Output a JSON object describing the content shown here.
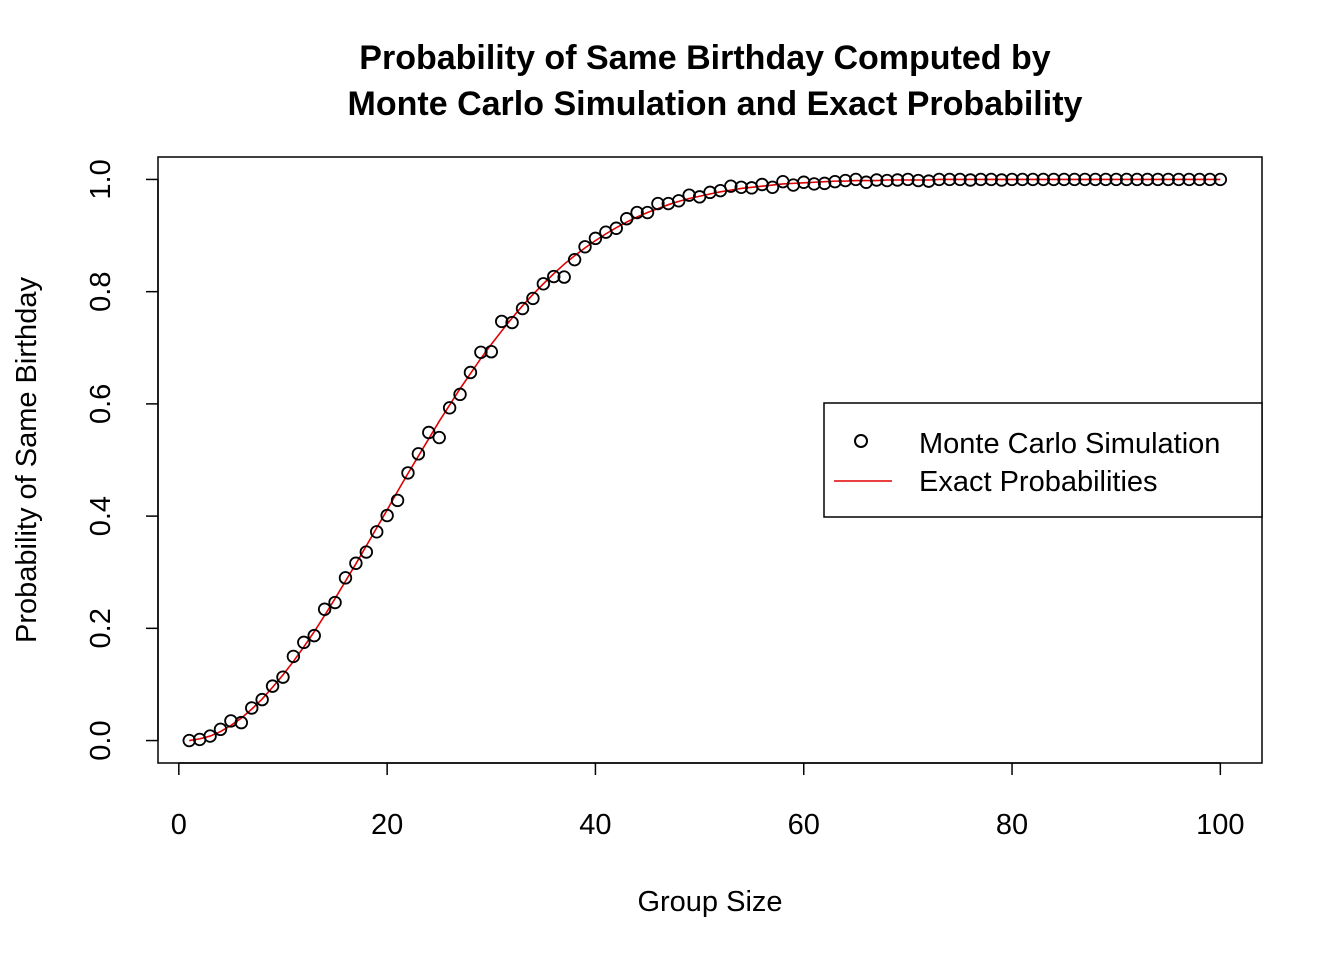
{
  "chart_data": {
    "type": "scatter",
    "title_line1": "Probability of Same Birthday Computed by",
    "title_line2": "Monte Carlo Simulation and Exact Probability",
    "xlabel": "Group Size",
    "ylabel": "Probability of Same Birthday",
    "xlim": [
      -2,
      104
    ],
    "ylim": [
      -0.04,
      1.04
    ],
    "x_ticks": [
      0,
      20,
      40,
      60,
      80,
      100
    ],
    "y_ticks": [
      0.0,
      0.2,
      0.4,
      0.6,
      0.8,
      1.0
    ],
    "x_tick_labels": [
      "0",
      "20",
      "40",
      "60",
      "80",
      "100"
    ],
    "y_tick_labels": [
      "0.0",
      "0.2",
      "0.4",
      "0.6",
      "0.8",
      "1.0"
    ],
    "grid": false,
    "legend_position": "right",
    "series": [
      {
        "name": "Monte Carlo Simulation",
        "kind": "points",
        "marker": "open-circle",
        "color": "#000000",
        "x": [
          1,
          2,
          3,
          4,
          5,
          6,
          7,
          8,
          9,
          10,
          11,
          12,
          13,
          14,
          15,
          16,
          17,
          18,
          19,
          20,
          21,
          22,
          23,
          24,
          25,
          26,
          27,
          28,
          29,
          30,
          31,
          32,
          33,
          34,
          35,
          36,
          37,
          38,
          39,
          40,
          41,
          42,
          43,
          44,
          45,
          46,
          47,
          48,
          49,
          50,
          51,
          52,
          53,
          54,
          55,
          56,
          57,
          58,
          59,
          60,
          61,
          62,
          63,
          64,
          65,
          66,
          67,
          68,
          69,
          70,
          71,
          72,
          73,
          74,
          75,
          76,
          77,
          78,
          79,
          80,
          81,
          82,
          83,
          84,
          85,
          86,
          87,
          88,
          89,
          90,
          91,
          92,
          93,
          94,
          95,
          96,
          97,
          98,
          99,
          100
        ],
        "y": [
          0.0,
          0.002,
          0.008,
          0.02,
          0.035,
          0.032,
          0.058,
          0.073,
          0.097,
          0.113,
          0.15,
          0.175,
          0.187,
          0.234,
          0.246,
          0.29,
          0.316,
          0.336,
          0.372,
          0.401,
          0.428,
          0.477,
          0.511,
          0.549,
          0.54,
          0.593,
          0.617,
          0.656,
          0.692,
          0.693,
          0.747,
          0.745,
          0.77,
          0.788,
          0.814,
          0.827,
          0.826,
          0.857,
          0.88,
          0.895,
          0.906,
          0.913,
          0.93,
          0.941,
          0.941,
          0.957,
          0.957,
          0.962,
          0.972,
          0.969,
          0.977,
          0.98,
          0.988,
          0.986,
          0.985,
          0.991,
          0.986,
          0.996,
          0.99,
          0.995,
          0.992,
          0.993,
          0.996,
          0.998,
          1.0,
          0.995,
          0.999,
          0.998,
          0.999,
          1.0,
          0.998,
          0.997,
          1.0,
          1.0,
          1.0,
          0.999,
          1.0,
          1.0,
          0.999,
          1.0,
          1.0,
          1.0,
          1.0,
          1.0,
          1.0,
          1.0,
          1.0,
          1.0,
          1.0,
          1.0,
          1.0,
          1.0,
          1.0,
          1.0,
          1.0,
          1.0,
          1.0,
          1.0,
          1.0,
          1.0
        ]
      },
      {
        "name": "Exact Probabilities",
        "kind": "line",
        "color": "#e00000",
        "x": [
          1,
          2,
          3,
          4,
          5,
          6,
          7,
          8,
          9,
          10,
          11,
          12,
          13,
          14,
          15,
          16,
          17,
          18,
          19,
          20,
          21,
          22,
          23,
          24,
          25,
          26,
          27,
          28,
          29,
          30,
          31,
          32,
          33,
          34,
          35,
          36,
          37,
          38,
          39,
          40,
          41,
          42,
          43,
          44,
          45,
          46,
          47,
          48,
          49,
          50,
          51,
          52,
          53,
          54,
          55,
          56,
          57,
          58,
          59,
          60,
          61,
          62,
          63,
          64,
          65,
          66,
          67,
          68,
          69,
          70,
          71,
          72,
          73,
          74,
          75,
          76,
          77,
          78,
          79,
          80,
          81,
          82,
          83,
          84,
          85,
          86,
          87,
          88,
          89,
          90,
          91,
          92,
          93,
          94,
          95,
          96,
          97,
          98,
          99,
          100
        ],
        "y": [
          0.0,
          0.003,
          0.008,
          0.016,
          0.027,
          0.04,
          0.056,
          0.074,
          0.095,
          0.117,
          0.141,
          0.167,
          0.194,
          0.223,
          0.253,
          0.284,
          0.315,
          0.347,
          0.379,
          0.411,
          0.444,
          0.476,
          0.507,
          0.538,
          0.569,
          0.598,
          0.627,
          0.654,
          0.681,
          0.706,
          0.73,
          0.753,
          0.775,
          0.795,
          0.814,
          0.832,
          0.849,
          0.864,
          0.878,
          0.891,
          0.903,
          0.914,
          0.924,
          0.933,
          0.941,
          0.948,
          0.955,
          0.961,
          0.966,
          0.97,
          0.974,
          0.978,
          0.981,
          0.984,
          0.986,
          0.988,
          0.99,
          0.992,
          0.993,
          0.994,
          0.995,
          0.996,
          0.997,
          0.997,
          0.998,
          0.998,
          0.998,
          0.999,
          0.999,
          0.999,
          0.999,
          0.999,
          1.0,
          1.0,
          1.0,
          1.0,
          1.0,
          1.0,
          1.0,
          1.0,
          1.0,
          1.0,
          1.0,
          1.0,
          1.0,
          1.0,
          1.0,
          1.0,
          1.0,
          1.0,
          1.0,
          1.0,
          1.0,
          1.0,
          1.0,
          1.0,
          1.0,
          1.0,
          1.0,
          1.0
        ]
      }
    ],
    "legend": {
      "items": [
        {
          "label": "Monte Carlo Simulation",
          "symbol": "open-circle"
        },
        {
          "label": "Exact Probabilities",
          "symbol": "line"
        }
      ]
    }
  }
}
